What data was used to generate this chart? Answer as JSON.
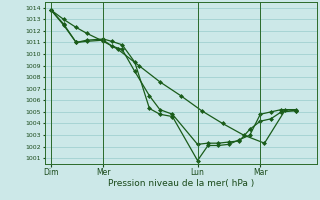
{
  "xlabel": "Pression niveau de la mer( hPa )",
  "background_color": "#cce8e8",
  "grid_color": "#99cccc",
  "line_color": "#1a5c1a",
  "marker_color": "#1a5c1a",
  "vline_color": "#2a6a2a",
  "yticks": [
    1001,
    1002,
    1003,
    1004,
    1005,
    1006,
    1007,
    1008,
    1009,
    1010,
    1011,
    1012,
    1013,
    1014
  ],
  "ylim": [
    1000.5,
    1014.5
  ],
  "day_labels": [
    "Dim",
    "Mer",
    "Lun",
    "Mar"
  ],
  "day_positions": [
    0.3,
    2.8,
    7.3,
    10.3
  ],
  "vline_positions": [
    0.3,
    2.8,
    7.3,
    10.3
  ],
  "xlim": [
    0.0,
    13.0
  ],
  "line1_x": [
    0.3,
    0.9,
    1.5,
    2.0,
    2.8,
    3.2,
    3.7,
    4.3,
    5.0,
    5.5,
    6.1,
    7.3,
    7.8,
    8.3,
    8.8,
    9.3,
    9.8,
    10.3,
    10.8,
    11.3,
    12.0
  ],
  "line1_y": [
    1013.8,
    1012.5,
    1011.0,
    1011.1,
    1011.2,
    1010.7,
    1010.4,
    1008.5,
    1006.4,
    1005.2,
    1004.8,
    1002.2,
    1002.3,
    1002.3,
    1002.4,
    1002.5,
    1003.5,
    1004.2,
    1004.4,
    1005.0,
    1005.1
  ],
  "line2_x": [
    0.3,
    0.9,
    1.5,
    2.0,
    2.8,
    3.2,
    3.7,
    4.3,
    5.0,
    5.5,
    6.1,
    7.3,
    7.8,
    8.3,
    8.8,
    9.3,
    9.8,
    10.3,
    10.8,
    11.3,
    12.0
  ],
  "line2_y": [
    1013.8,
    1012.6,
    1011.0,
    1011.2,
    1011.3,
    1011.1,
    1010.8,
    1009.3,
    1005.3,
    1004.8,
    1004.6,
    1000.8,
    1002.1,
    1002.1,
    1002.2,
    1002.6,
    1003.0,
    1004.8,
    1005.0,
    1005.2,
    1005.2
  ],
  "line3_x": [
    0.3,
    0.9,
    1.5,
    2.0,
    2.8,
    3.5,
    4.5,
    5.5,
    6.5,
    7.5,
    8.5,
    9.5,
    10.5,
    11.5,
    12.0
  ],
  "line3_y": [
    1013.8,
    1013.0,
    1012.3,
    1011.8,
    1011.1,
    1010.4,
    1009.0,
    1007.6,
    1006.4,
    1005.1,
    1004.0,
    1003.0,
    1002.3,
    1005.2,
    1005.1
  ]
}
